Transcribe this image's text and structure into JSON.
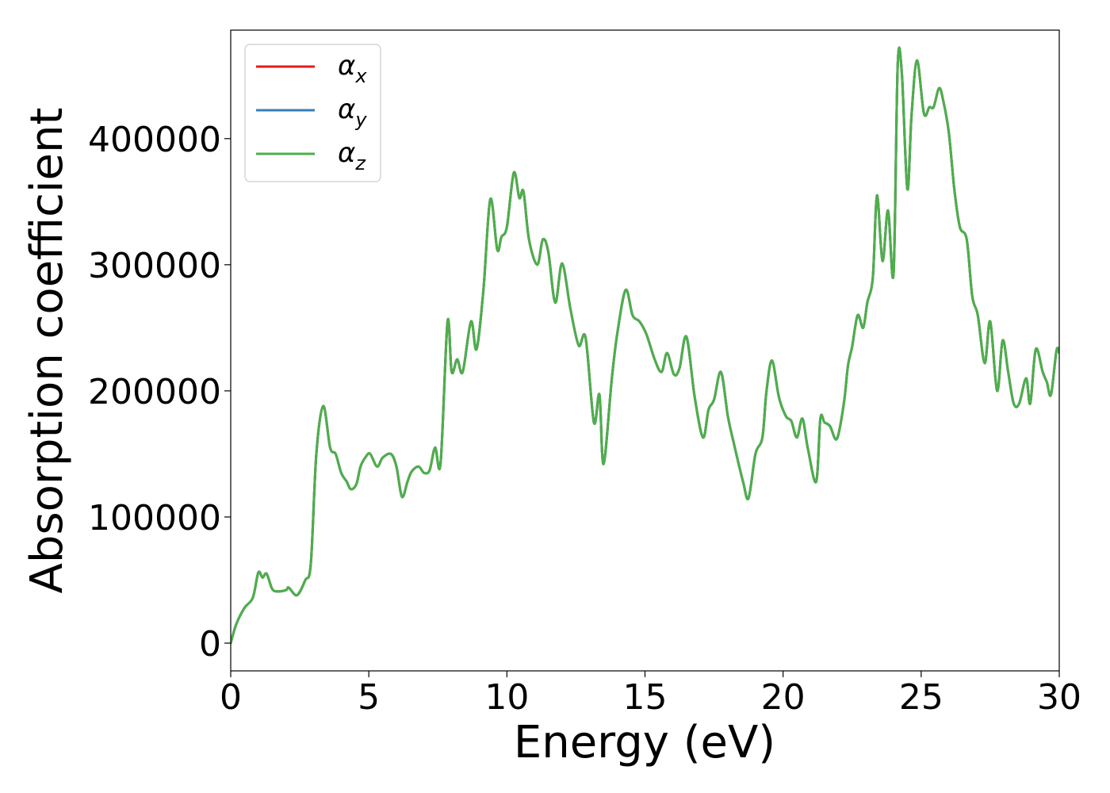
{
  "chart_data": {
    "type": "line",
    "xlabel": "Energy (eV)",
    "ylabel": "Absorption coefficient",
    "xlim": [
      0,
      30
    ],
    "ylim": [
      -22000,
      486000
    ],
    "xticks": [
      0,
      5,
      10,
      15,
      20,
      25,
      30
    ],
    "yticks": [
      0,
      100000,
      200000,
      300000,
      400000
    ],
    "grid": false,
    "legend_position": "top-left",
    "series": [
      {
        "name": "α",
        "subscript": "x",
        "color": "#e41a1c",
        "x": [
          0,
          0.2,
          0.5,
          0.8,
          1.0,
          1.15,
          1.3,
          1.5,
          1.7,
          2.0,
          2.1,
          2.4,
          2.7,
          2.9,
          3.1,
          3.35,
          3.6,
          3.8,
          4.0,
          4.2,
          4.35,
          4.55,
          4.7,
          4.9,
          5.05,
          5.3,
          5.5,
          5.8,
          6.0,
          6.2,
          6.4,
          6.55,
          6.8,
          7.0,
          7.2,
          7.4,
          7.6,
          7.85,
          8.0,
          8.2,
          8.4,
          8.7,
          8.9,
          9.15,
          9.4,
          9.65,
          9.8,
          10.0,
          10.25,
          10.45,
          10.6,
          10.8,
          11.1,
          11.3,
          11.5,
          11.75,
          12.0,
          12.3,
          12.6,
          12.85,
          13.15,
          13.35,
          13.5,
          13.8,
          14.0,
          14.3,
          14.55,
          14.8,
          15.05,
          15.35,
          15.6,
          15.8,
          16.05,
          16.25,
          16.5,
          16.8,
          17.1,
          17.3,
          17.5,
          17.75,
          18.0,
          18.2,
          18.55,
          18.75,
          19.0,
          19.25,
          19.4,
          19.6,
          19.85,
          20.1,
          20.3,
          20.5,
          20.7,
          20.9,
          21.2,
          21.35,
          21.5,
          21.7,
          21.95,
          22.2,
          22.35,
          22.5,
          22.7,
          22.9,
          23.05,
          23.25,
          23.4,
          23.6,
          23.8,
          24.0,
          24.15,
          24.3,
          24.5,
          24.65,
          24.85,
          25.1,
          25.3,
          25.45,
          25.65,
          25.8,
          26.0,
          26.2,
          26.4,
          26.65,
          26.85,
          27.05,
          27.3,
          27.5,
          27.75,
          27.95,
          28.15,
          28.35,
          28.55,
          28.8,
          28.95,
          29.15,
          29.4,
          29.55,
          29.7,
          29.9,
          30.0
        ],
        "values": [
          0,
          15000,
          28000,
          36000,
          56000,
          52000,
          55000,
          43000,
          41000,
          42000,
          44000,
          38000,
          50000,
          63000,
          150000,
          188000,
          155000,
          150000,
          135000,
          128000,
          122000,
          126000,
          140000,
          148000,
          150000,
          140000,
          147000,
          150000,
          140000,
          116000,
          128000,
          136000,
          140000,
          135000,
          137000,
          155000,
          143000,
          255000,
          215000,
          225000,
          215000,
          255000,
          233000,
          280000,
          352000,
          312000,
          322000,
          330000,
          373000,
          353000,
          358000,
          320000,
          300000,
          320000,
          310000,
          270000,
          301000,
          265000,
          236000,
          242000,
          175000,
          197000,
          142000,
          210000,
          246000,
          280000,
          260000,
          255000,
          245000,
          225000,
          215000,
          230000,
          213000,
          218000,
          243000,
          195000,
          163000,
          185000,
          193000,
          215000,
          180000,
          160000,
          128000,
          115000,
          150000,
          163000,
          200000,
          224000,
          195000,
          180000,
          176000,
          163000,
          178000,
          154000,
          128000,
          178000,
          175000,
          172000,
          162000,
          190000,
          220000,
          235000,
          260000,
          250000,
          270000,
          290000,
          355000,
          303000,
          343000,
          293000,
          458000,
          452000,
          360000,
          418000,
          462000,
          420000,
          425000,
          425000,
          440000,
          430000,
          405000,
          360000,
          330000,
          320000,
          275000,
          260000,
          222000,
          255000,
          200000,
          240000,
          215000,
          190000,
          190000,
          210000,
          190000,
          233000,
          215000,
          207000,
          197000,
          232000,
          230000
        ]
      },
      {
        "name": "α",
        "subscript": "y",
        "color": "#377eb8",
        "x": [
          0,
          0.2,
          0.5,
          0.8,
          1.0,
          1.15,
          1.3,
          1.5,
          1.7,
          2.0,
          2.1,
          2.4,
          2.7,
          2.9,
          3.1,
          3.35,
          3.6,
          3.8,
          4.0,
          4.2,
          4.35,
          4.55,
          4.7,
          4.9,
          5.05,
          5.3,
          5.5,
          5.8,
          6.0,
          6.2,
          6.4,
          6.55,
          6.8,
          7.0,
          7.2,
          7.4,
          7.6,
          7.85,
          8.0,
          8.2,
          8.4,
          8.7,
          8.9,
          9.15,
          9.4,
          9.65,
          9.8,
          10.0,
          10.25,
          10.45,
          10.6,
          10.8,
          11.1,
          11.3,
          11.5,
          11.75,
          12.0,
          12.3,
          12.6,
          12.85,
          13.15,
          13.35,
          13.5,
          13.8,
          14.0,
          14.3,
          14.55,
          14.8,
          15.05,
          15.35,
          15.6,
          15.8,
          16.05,
          16.25,
          16.5,
          16.8,
          17.1,
          17.3,
          17.5,
          17.75,
          18.0,
          18.2,
          18.55,
          18.75,
          19.0,
          19.25,
          19.4,
          19.6,
          19.85,
          20.1,
          20.3,
          20.5,
          20.7,
          20.9,
          21.2,
          21.35,
          21.5,
          21.7,
          21.95,
          22.2,
          22.35,
          22.5,
          22.7,
          22.9,
          23.05,
          23.25,
          23.4,
          23.6,
          23.8,
          24.0,
          24.15,
          24.3,
          24.5,
          24.65,
          24.85,
          25.1,
          25.3,
          25.45,
          25.65,
          25.8,
          26.0,
          26.2,
          26.4,
          26.65,
          26.85,
          27.05,
          27.3,
          27.5,
          27.75,
          27.95,
          28.15,
          28.35,
          28.55,
          28.8,
          28.95,
          29.15,
          29.4,
          29.55,
          29.7,
          29.9,
          30.0
        ],
        "values": [
          0,
          15000,
          28000,
          36000,
          56000,
          52000,
          55000,
          43000,
          41000,
          42000,
          44000,
          38000,
          50000,
          63000,
          150000,
          188000,
          155000,
          150000,
          135000,
          128000,
          122000,
          126000,
          140000,
          148000,
          150000,
          140000,
          147000,
          150000,
          140000,
          116000,
          128000,
          136000,
          140000,
          135000,
          137000,
          155000,
          143000,
          255000,
          215000,
          225000,
          215000,
          255000,
          233000,
          280000,
          352000,
          312000,
          322000,
          330000,
          373000,
          353000,
          358000,
          320000,
          300000,
          320000,
          310000,
          270000,
          301000,
          265000,
          236000,
          242000,
          175000,
          197000,
          142000,
          210000,
          246000,
          280000,
          260000,
          255000,
          245000,
          225000,
          215000,
          230000,
          213000,
          218000,
          243000,
          195000,
          163000,
          185000,
          193000,
          215000,
          180000,
          160000,
          128000,
          115000,
          150000,
          163000,
          200000,
          224000,
          195000,
          180000,
          176000,
          163000,
          178000,
          154000,
          128000,
          178000,
          175000,
          172000,
          162000,
          190000,
          220000,
          235000,
          260000,
          250000,
          270000,
          290000,
          355000,
          303000,
          343000,
          293000,
          458000,
          452000,
          360000,
          418000,
          462000,
          420000,
          425000,
          425000,
          440000,
          430000,
          405000,
          360000,
          330000,
          320000,
          275000,
          260000,
          222000,
          255000,
          200000,
          240000,
          215000,
          190000,
          190000,
          210000,
          190000,
          233000,
          215000,
          207000,
          197000,
          232000,
          230000
        ]
      },
      {
        "name": "α",
        "subscript": "z",
        "color": "#4daf4a",
        "x": [
          0,
          0.2,
          0.5,
          0.8,
          1.0,
          1.15,
          1.3,
          1.5,
          1.7,
          2.0,
          2.1,
          2.4,
          2.7,
          2.9,
          3.1,
          3.35,
          3.6,
          3.8,
          4.0,
          4.2,
          4.35,
          4.55,
          4.7,
          4.9,
          5.05,
          5.3,
          5.5,
          5.8,
          6.0,
          6.2,
          6.4,
          6.55,
          6.8,
          7.0,
          7.2,
          7.4,
          7.6,
          7.85,
          8.0,
          8.2,
          8.4,
          8.7,
          8.9,
          9.15,
          9.4,
          9.65,
          9.8,
          10.0,
          10.25,
          10.45,
          10.6,
          10.8,
          11.1,
          11.3,
          11.5,
          11.75,
          12.0,
          12.3,
          12.6,
          12.85,
          13.15,
          13.35,
          13.5,
          13.8,
          14.0,
          14.3,
          14.55,
          14.8,
          15.05,
          15.35,
          15.6,
          15.8,
          16.05,
          16.25,
          16.5,
          16.8,
          17.1,
          17.3,
          17.5,
          17.75,
          18.0,
          18.2,
          18.55,
          18.75,
          19.0,
          19.25,
          19.4,
          19.6,
          19.85,
          20.1,
          20.3,
          20.5,
          20.7,
          20.9,
          21.2,
          21.35,
          21.5,
          21.7,
          21.95,
          22.2,
          22.35,
          22.5,
          22.7,
          22.9,
          23.05,
          23.25,
          23.4,
          23.6,
          23.8,
          24.0,
          24.15,
          24.3,
          24.5,
          24.65,
          24.85,
          25.1,
          25.3,
          25.45,
          25.65,
          25.8,
          26.0,
          26.2,
          26.4,
          26.65,
          26.85,
          27.05,
          27.3,
          27.5,
          27.75,
          27.95,
          28.15,
          28.35,
          28.55,
          28.8,
          28.95,
          29.15,
          29.4,
          29.55,
          29.7,
          29.9,
          30.0
        ],
        "values": [
          0,
          15000,
          28000,
          36000,
          56000,
          52000,
          55000,
          43000,
          41000,
          42000,
          44000,
          38000,
          50000,
          63000,
          150000,
          188000,
          155000,
          150000,
          135000,
          128000,
          122000,
          126000,
          140000,
          148000,
          150000,
          140000,
          147000,
          150000,
          140000,
          116000,
          128000,
          136000,
          140000,
          135000,
          137000,
          155000,
          143000,
          255000,
          215000,
          225000,
          215000,
          255000,
          233000,
          280000,
          352000,
          312000,
          322000,
          330000,
          373000,
          353000,
          358000,
          320000,
          300000,
          320000,
          310000,
          270000,
          301000,
          265000,
          236000,
          242000,
          175000,
          197000,
          142000,
          210000,
          246000,
          280000,
          260000,
          255000,
          245000,
          225000,
          215000,
          230000,
          213000,
          218000,
          243000,
          195000,
          163000,
          185000,
          193000,
          215000,
          180000,
          160000,
          128000,
          115000,
          150000,
          163000,
          200000,
          224000,
          195000,
          180000,
          176000,
          163000,
          178000,
          154000,
          128000,
          178000,
          175000,
          172000,
          162000,
          190000,
          220000,
          235000,
          260000,
          250000,
          270000,
          290000,
          355000,
          303000,
          343000,
          293000,
          458000,
          452000,
          360000,
          418000,
          462000,
          420000,
          425000,
          425000,
          440000,
          430000,
          405000,
          360000,
          330000,
          320000,
          275000,
          260000,
          222000,
          255000,
          200000,
          240000,
          215000,
          190000,
          190000,
          210000,
          190000,
          233000,
          215000,
          207000,
          197000,
          232000,
          230000
        ]
      }
    ]
  }
}
